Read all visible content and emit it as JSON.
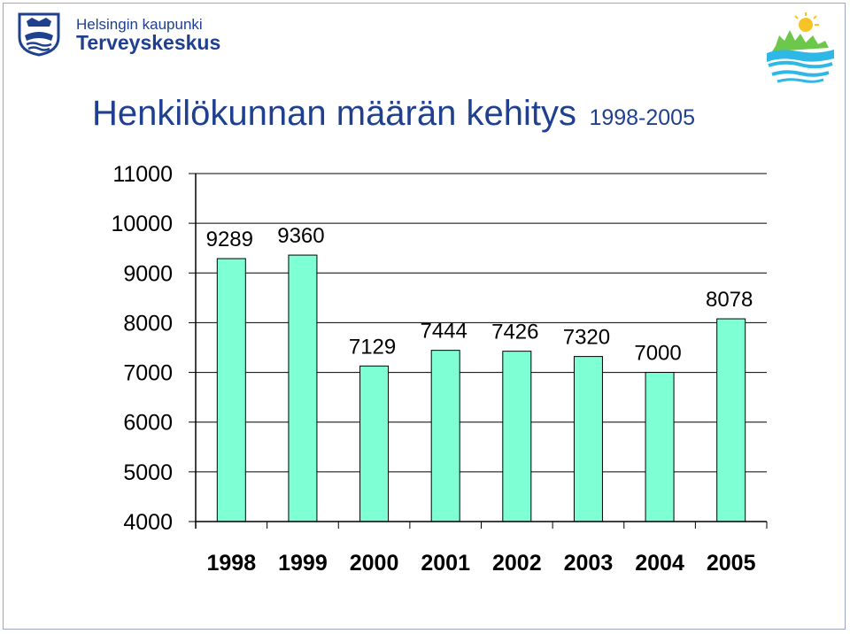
{
  "header": {
    "org_line_1": "Helsingin kaupunki",
    "org_line_2": "Terveyskeskus",
    "logo_icon": "helsinki-crest-icon",
    "city_logo_icon": "city-skyline-logo-icon"
  },
  "chart_data": {
    "type": "bar",
    "title": "Henkilökunnan määrän kehitys",
    "subtitle": "1998-2005",
    "categories": [
      "1998",
      "1999",
      "2000",
      "2001",
      "2002",
      "2003",
      "2004",
      "2005"
    ],
    "values": [
      9289,
      9360,
      7129,
      7444,
      7426,
      7320,
      7000,
      8078
    ],
    "data_labels": [
      "9289",
      "9360",
      "7129",
      "7444",
      "7426",
      "7320",
      "7000",
      "8078"
    ],
    "yticks": [
      "4000",
      "5000",
      "6000",
      "7000",
      "8000",
      "9000",
      "10000",
      "11000"
    ],
    "ylim": [
      4000,
      11000
    ],
    "xlabel": "",
    "ylabel": "",
    "grid": true,
    "legend": "none",
    "bar_color": "#7fffd4",
    "bar_edge": "#000000"
  }
}
